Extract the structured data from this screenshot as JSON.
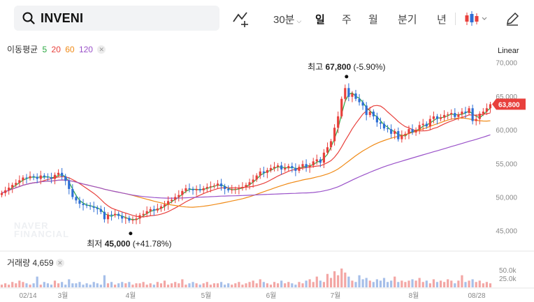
{
  "search": {
    "symbol": "INVENI"
  },
  "periods": [
    {
      "label": "30분",
      "has_dropdown": true,
      "active": false
    },
    {
      "label": "일",
      "has_dropdown": false,
      "active": true
    },
    {
      "label": "주",
      "has_dropdown": false,
      "active": false
    },
    {
      "label": "월",
      "has_dropdown": false,
      "active": false
    },
    {
      "label": "분기",
      "has_dropdown": false,
      "active": false
    },
    {
      "label": "년",
      "has_dropdown": false,
      "active": false
    }
  ],
  "icons": {
    "search": "search-icon",
    "compare": "compare-line-icon",
    "chart_type": "candlestick-icon",
    "draw": "pencil-icon"
  },
  "moving_average": {
    "label": "이동평균",
    "periods": [
      {
        "value": "5",
        "color": "#2aa840"
      },
      {
        "value": "20",
        "color": "#e8403c"
      },
      {
        "value": "60",
        "color": "#f08a16"
      },
      {
        "value": "120",
        "color": "#9a52c9"
      }
    ]
  },
  "scale_mode": "Linear",
  "price_axis": {
    "ticks": [
      "70,000",
      "65,000",
      "60,000",
      "55,000",
      "50,000",
      "45,000"
    ],
    "tick_values": [
      70000,
      65000,
      60000,
      55000,
      50000,
      45000
    ],
    "current_price": "63,800",
    "current_value": 63800,
    "current_color": "#e8403c"
  },
  "annotations": {
    "high": {
      "label": "최고",
      "price": "67,800",
      "change": "(-5.90%)",
      "value": 67800
    },
    "low": {
      "label": "최저",
      "price": "45,000",
      "change": "(+41.78%)",
      "value": 45000
    }
  },
  "watermark": {
    "line1": "NAVER",
    "line2": "FINANCIAL"
  },
  "volume": {
    "label": "거래량",
    "value": "4,659",
    "ticks": [
      "50.0k",
      "25.0k"
    ]
  },
  "x_axis": {
    "labels": [
      "02/14",
      "3월",
      "4월",
      "5월",
      "6월",
      "7월",
      "8월",
      "08/28"
    ]
  },
  "colors": {
    "up": "#e8403c",
    "down": "#2f6fd6",
    "volume_up": "#f3a6a4",
    "volume_down": "#a6bfe9"
  },
  "chart_data": {
    "type": "candlestick",
    "ylim": [
      43000,
      71000
    ],
    "closes": [
      50600,
      51000,
      51400,
      51800,
      52100,
      52500,
      52900,
      52800,
      53100,
      53000,
      52700,
      53200,
      53000,
      52900,
      52700,
      53300,
      53600,
      53100,
      52400,
      51200,
      50000,
      49500,
      49000,
      48800,
      48700,
      48600,
      48400,
      48200,
      47800,
      46700,
      47400,
      47300,
      47500,
      47200,
      46800,
      46900,
      46500,
      46600,
      46800,
      47300,
      47500,
      47900,
      48200,
      48000,
      48300,
      48600,
      48900,
      49400,
      49600,
      50000,
      50300,
      50900,
      51300,
      51200,
      51000,
      51200,
      51000,
      51300,
      51500,
      51600,
      51700,
      52000,
      51600,
      51200,
      51000,
      51100,
      51200,
      51300,
      51500,
      51800,
      52200,
      52600,
      53200,
      53800,
      53600,
      54000,
      54300,
      54500,
      54700,
      54100,
      54300,
      54600,
      54300,
      53900,
      54500,
      54900,
      54400,
      54700,
      55300,
      55600,
      55100,
      56600,
      57400,
      58300,
      60300,
      62000,
      64600,
      66200,
      64900,
      65400,
      64600,
      64100,
      63600,
      62200,
      62700,
      62000,
      61100,
      60900,
      60200,
      60100,
      59400,
      59800,
      58600,
      59200,
      59400,
      60100,
      59600,
      60000,
      60700,
      60900,
      60500,
      61600,
      62000,
      61600,
      61800,
      62200,
      62300,
      62500,
      61900,
      62300,
      62700,
      62500,
      63200,
      61300,
      61600,
      62400,
      62700,
      63200,
      63800
    ],
    "volumes": [
      2,
      3,
      2,
      4,
      3,
      5,
      4,
      3,
      2,
      3,
      8,
      2,
      4,
      3,
      2,
      5,
      3,
      4,
      2,
      6,
      3,
      3,
      4,
      2,
      3,
      2,
      4,
      3,
      2,
      9,
      3,
      4,
      2,
      3,
      4,
      3,
      4,
      2,
      3,
      3,
      4,
      2,
      3,
      2,
      4,
      3,
      5,
      2,
      3,
      4,
      3,
      6,
      2,
      3,
      4,
      3,
      2,
      3,
      4,
      2,
      3,
      3,
      4,
      2,
      3,
      2,
      3,
      4,
      2,
      3,
      4,
      5,
      3,
      6,
      4,
      3,
      2,
      4,
      3,
      5,
      3,
      4,
      3,
      2,
      4,
      3,
      5,
      6,
      4,
      8,
      5,
      4,
      10,
      7,
      12,
      9,
      14,
      11,
      8,
      5,
      4,
      9,
      6,
      7,
      5,
      4,
      6,
      5,
      7,
      4,
      5,
      8,
      4,
      5,
      4,
      5,
      6,
      5,
      7,
      4,
      5,
      3,
      6,
      4,
      5,
      4,
      6,
      5,
      3,
      5,
      9,
      4,
      5,
      6,
      4,
      5,
      3,
      4,
      3
    ]
  }
}
